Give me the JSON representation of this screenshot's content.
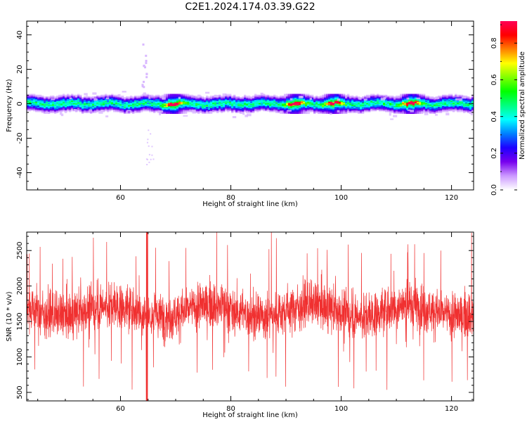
{
  "title": "C2E1.2024.174.03.39.G22",
  "chart_data": [
    {
      "type": "heatmap",
      "title": "C2E1.2024.174.03.39.G22",
      "xlabel": "Height of straight line (km)",
      "ylabel": "Frequency (Hz)",
      "xlim": [
        43,
        124
      ],
      "ylim": [
        -50,
        48
      ],
      "x_ticks": [
        60,
        80,
        100,
        120
      ],
      "y_ticks": [
        -40,
        -20,
        0,
        20,
        40
      ],
      "band_center_hz": 0,
      "band_halfwidth_hz": 4,
      "hot_spots": [
        {
          "x_km": 69.5,
          "y_hz": 0
        },
        {
          "x_km": 112.5,
          "y_hz": 0
        },
        {
          "x_km": 91.5,
          "y_hz": 0
        },
        {
          "x_km": 98.5,
          "y_hz": -1.5
        }
      ],
      "colorbar": {
        "label": "Normalized spectral amplitude",
        "range": [
          0,
          0.92
        ],
        "ticks": [
          0.0,
          0.2,
          0.4,
          0.6,
          0.8
        ],
        "colors": [
          "#ffffff",
          "#cc99ff",
          "#7700ee",
          "#1e00ff",
          "#0080ff",
          "#00ffff",
          "#00ff80",
          "#00ff00",
          "#80ff00",
          "#ffff00",
          "#ff8000",
          "#ff0000",
          "#ff0055"
        ]
      }
    },
    {
      "type": "line",
      "xlabel": "Height of straight line (km)",
      "ylabel": "SNR (10 * v/v)",
      "xlim": [
        43,
        124
      ],
      "ylim": [
        380,
        2760
      ],
      "x_ticks": [
        60,
        80,
        100,
        120
      ],
      "y_ticks": [
        500,
        1000,
        1500,
        2000,
        2500
      ],
      "color": "#f03030",
      "baseline": 1650,
      "typical_range": [
        1200,
        2100
      ],
      "extremes": {
        "max": 2760,
        "min": 380
      }
    }
  ]
}
